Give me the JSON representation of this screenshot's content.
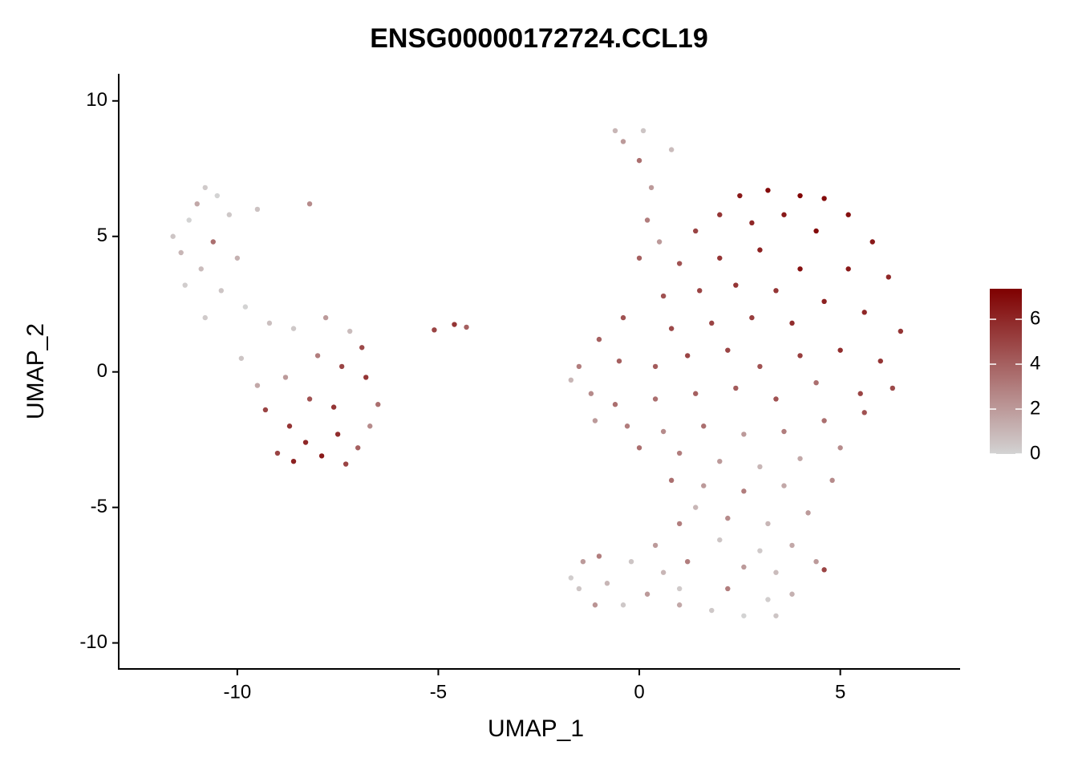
{
  "chart_data": {
    "type": "scatter",
    "title": "ENSG00000172724.CCL19",
    "x_label": "UMAP_1",
    "y_label": "UMAP_2",
    "xlim": [
      -12.95,
      7.98
    ],
    "xticks": [
      -10,
      -5,
      0,
      5
    ],
    "ylim": [
      -10.96,
      11.0
    ],
    "yticks": [
      -10,
      -5,
      0,
      5,
      10
    ],
    "color_low": "#d3d3d3",
    "color_high": "#7f0000",
    "color_lim": [
      0,
      7.36
    ],
    "color_ticks": [
      0,
      2,
      4,
      6
    ],
    "x": [
      -11.6,
      -11.4,
      -11.2,
      -11.0,
      -10.8,
      -10.5,
      -10.9,
      -11.3,
      -10.6,
      -10.2,
      -10.0,
      -10.4,
      -9.8,
      -9.5,
      -8.2,
      -9.2,
      -10.8,
      -9.9,
      -9.5,
      -8.6,
      -7.8,
      -7.2,
      -8.0,
      -7.4,
      -6.8,
      -6.5,
      -8.8,
      -9.3,
      -8.7,
      -8.3,
      -7.9,
      -8.6,
      -7.5,
      -7.0,
      -6.7,
      -7.6,
      -8.2,
      -9.0,
      -7.3,
      -6.9,
      -5.1,
      -4.6,
      -4.3,
      -0.6,
      -0.4,
      0.1,
      0.0,
      0.8,
      0.3,
      0.2,
      0.5,
      0.0,
      2.5,
      3.2,
      4.0,
      4.6,
      5.2,
      3.6,
      2.8,
      2.0,
      1.4,
      5.8,
      4.4,
      3.0,
      2.0,
      1.0,
      6.2,
      5.2,
      4.0,
      3.4,
      2.4,
      1.5,
      0.6,
      6.5,
      5.6,
      4.6,
      3.8,
      2.8,
      1.8,
      0.8,
      -0.4,
      -1.0,
      -1.5,
      -1.7,
      -1.2,
      -0.5,
      0.4,
      1.2,
      2.2,
      3.0,
      4.0,
      5.0,
      6.0,
      6.3,
      5.5,
      4.4,
      3.4,
      2.4,
      1.4,
      0.4,
      -0.6,
      -1.1,
      -0.3,
      0.6,
      1.6,
      2.6,
      3.6,
      4.6,
      5.6,
      5.0,
      4.0,
      3.0,
      2.0,
      1.0,
      0.0,
      4.8,
      3.6,
      2.6,
      1.6,
      0.8,
      1.4,
      2.2,
      3.2,
      4.2,
      1.0,
      2.0,
      3.0,
      3.8,
      2.6,
      3.4,
      2.2,
      3.2,
      2.6,
      3.4,
      1.8,
      3.8,
      4.4,
      4.6,
      -1.7,
      -1.4,
      -1.0,
      -1.5,
      -0.8,
      -0.4,
      0.2,
      0.6,
      1.0,
      -0.2,
      0.4,
      1.2,
      1.0,
      -1.1
    ],
    "y": [
      5.0,
      4.4,
      5.6,
      6.2,
      6.8,
      6.5,
      3.8,
      3.2,
      4.8,
      5.8,
      4.2,
      3.0,
      2.4,
      6.0,
      6.2,
      1.8,
      2.0,
      0.5,
      -0.5,
      1.6,
      2.0,
      1.5,
      0.6,
      0.2,
      -0.2,
      -1.2,
      -0.2,
      -1.4,
      -2.0,
      -2.6,
      -3.1,
      -3.3,
      -2.3,
      -2.8,
      -2.0,
      -1.3,
      -1.0,
      -3.0,
      -3.4,
      0.9,
      1.55,
      1.75,
      1.65,
      8.9,
      8.5,
      8.9,
      7.8,
      8.2,
      6.8,
      5.6,
      4.8,
      4.2,
      6.5,
      6.7,
      6.5,
      6.4,
      5.8,
      5.8,
      5.5,
      5.8,
      5.2,
      4.8,
      5.2,
      4.5,
      4.2,
      4.0,
      3.5,
      3.8,
      3.8,
      3.0,
      3.2,
      3.0,
      2.8,
      1.5,
      2.2,
      2.6,
      1.8,
      2.0,
      1.8,
      1.6,
      2.0,
      1.2,
      0.2,
      -0.3,
      -0.8,
      0.4,
      0.2,
      0.6,
      0.8,
      0.2,
      0.6,
      0.8,
      0.4,
      -0.6,
      -0.8,
      -0.4,
      -1.0,
      -0.6,
      -0.8,
      -1.0,
      -1.2,
      -1.8,
      -2.0,
      -2.2,
      -2.0,
      -2.3,
      -2.2,
      -1.8,
      -1.5,
      -2.8,
      -3.2,
      -3.5,
      -3.3,
      -3.0,
      -2.8,
      -4.0,
      -4.2,
      -4.4,
      -4.2,
      -4.0,
      -5.0,
      -5.4,
      -5.6,
      -5.2,
      -5.6,
      -6.2,
      -6.6,
      -6.4,
      -7.2,
      -7.4,
      -8.0,
      -8.4,
      -9.0,
      -9.0,
      -8.8,
      -8.2,
      -7.0,
      -7.3,
      -7.6,
      -7.0,
      -6.8,
      -8.0,
      -7.8,
      -8.6,
      -8.2,
      -7.4,
      -8.0,
      -7.0,
      -6.4,
      -7.0,
      -8.6,
      -8.6
    ],
    "values": [
      0.5,
      1,
      0,
      1.5,
      0.3,
      0,
      0.8,
      0.2,
      3.5,
      0.4,
      1.2,
      0.5,
      0,
      0.6,
      2.5,
      0.7,
      0.3,
      0.5,
      1.5,
      0.4,
      2,
      0.8,
      3,
      5,
      5.5,
      3.5,
      2,
      5,
      5.5,
      6,
      6.5,
      6.2,
      5.8,
      4,
      2.5,
      5.5,
      4.5,
      5,
      5,
      4.8,
      5,
      5.5,
      4,
      1,
      2,
      0.5,
      3.5,
      0.8,
      2,
      3,
      2,
      4,
      6.5,
      7,
      7.2,
      7,
      6.8,
      6.5,
      6,
      5.5,
      5,
      6.5,
      7,
      6.2,
      5.5,
      4.5,
      6,
      6.5,
      6.8,
      5.5,
      5.5,
      5,
      4.5,
      5.5,
      6,
      6.2,
      5.8,
      5.2,
      5,
      4.8,
      4.5,
      4,
      3,
      1,
      2.5,
      4,
      4.2,
      5,
      5,
      4.5,
      5.2,
      5.8,
      5.5,
      4.8,
      5,
      3.5,
      4.5,
      4.2,
      4,
      3.5,
      3.5,
      2,
      3,
      2.5,
      3.5,
      2,
      3,
      3.5,
      4.5,
      2.5,
      1.5,
      1,
      2,
      3,
      3.5,
      2.5,
      1.5,
      3,
      2,
      3.5,
      1,
      2.5,
      1,
      2,
      3,
      0.5,
      0.3,
      1.5,
      2,
      0.8,
      3,
      0.2,
      0,
      0.5,
      0.4,
      1.2,
      2,
      5,
      0.2,
      2,
      3,
      0.5,
      1,
      0.4,
      2,
      1,
      0.3,
      0.5,
      2,
      3,
      1.5,
      2.2
    ]
  }
}
